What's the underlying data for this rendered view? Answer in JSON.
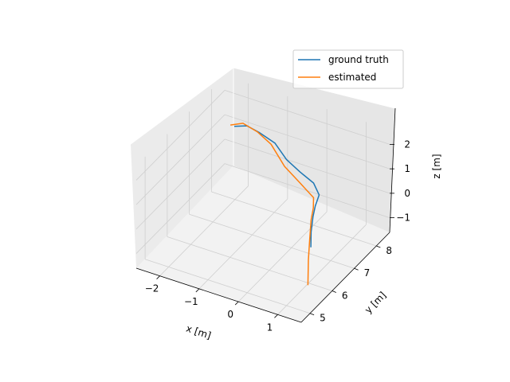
{
  "chart_data": {
    "type": "line",
    "title": "",
    "projection": "3d",
    "xlabel": "x [m]",
    "ylabel": "y [m]",
    "zlabel": "z [m]",
    "xlim": [
      -2.6,
      1.6
    ],
    "ylim": [
      4.6,
      8.6
    ],
    "zlim": [
      -1.6,
      2.6
    ],
    "x_ticks": [
      {
        "value": -2,
        "label": "−2"
      },
      {
        "value": -1,
        "label": "−1"
      },
      {
        "value": 0,
        "label": "0"
      },
      {
        "value": 1,
        "label": "1"
      }
    ],
    "y_ticks": [
      {
        "value": 5,
        "label": "5"
      },
      {
        "value": 6,
        "label": "6"
      },
      {
        "value": 7,
        "label": "7"
      },
      {
        "value": 8,
        "label": "8"
      }
    ],
    "z_ticks": [
      {
        "value": -1,
        "label": "−1"
      },
      {
        "value": 0,
        "label": "0"
      },
      {
        "value": 1,
        "label": "1"
      },
      {
        "value": 2,
        "label": "2"
      }
    ],
    "grid": true,
    "legend": {
      "placement": "upper-right"
    },
    "series": [
      {
        "name": "ground truth",
        "color": "#1f77b4",
        "points": [
          {
            "x": 0.55,
            "y": 6.9,
            "z": -1.2
          },
          {
            "x": 0.5,
            "y": 7.0,
            "z": -0.7
          },
          {
            "x": 0.52,
            "y": 7.05,
            "z": -0.1
          },
          {
            "x": 0.55,
            "y": 7.1,
            "z": 0.3
          },
          {
            "x": 0.62,
            "y": 7.15,
            "z": 0.75
          },
          {
            "x": 0.45,
            "y": 7.2,
            "z": 1.1
          },
          {
            "x": 0.05,
            "y": 7.3,
            "z": 1.25
          },
          {
            "x": -0.35,
            "y": 7.4,
            "z": 1.45
          },
          {
            "x": -0.7,
            "y": 7.5,
            "z": 1.85
          },
          {
            "x": -1.15,
            "y": 7.6,
            "z": 1.95
          },
          {
            "x": -1.5,
            "y": 7.65,
            "z": 2.0
          },
          {
            "x": -1.85,
            "y": 7.7,
            "z": 1.75
          }
        ]
      },
      {
        "name": "estimated",
        "color": "#ff7f0e",
        "points": [
          {
            "x": 0.7,
            "y": 6.5,
            "z": -2.3
          },
          {
            "x": 0.6,
            "y": 6.7,
            "z": -1.5
          },
          {
            "x": 0.55,
            "y": 6.85,
            "z": -0.8
          },
          {
            "x": 0.5,
            "y": 7.0,
            "z": -0.2
          },
          {
            "x": 0.5,
            "y": 7.1,
            "z": 0.2
          },
          {
            "x": 0.45,
            "y": 7.2,
            "z": 0.5
          },
          {
            "x": 0.05,
            "y": 7.3,
            "z": 0.8
          },
          {
            "x": -0.4,
            "y": 7.4,
            "z": 1.15
          },
          {
            "x": -0.8,
            "y": 7.5,
            "z": 1.75
          },
          {
            "x": -1.2,
            "y": 7.6,
            "z": 1.95
          },
          {
            "x": -1.6,
            "y": 7.65,
            "z": 2.05
          },
          {
            "x": -1.95,
            "y": 7.7,
            "z": 1.75
          }
        ]
      }
    ]
  }
}
